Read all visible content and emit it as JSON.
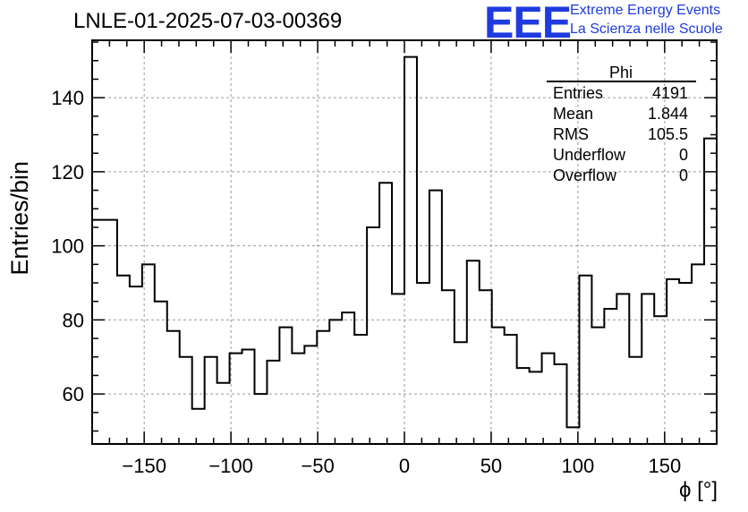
{
  "title": "LNLE-01-2025-07-03-00369",
  "logo": {
    "mark": "EEE",
    "line1": "Extreme Energy Events",
    "line2": "La Scienza nelle Scuole",
    "color": "#1f3be0"
  },
  "stats_box": {
    "name": "Phi",
    "rows": [
      {
        "label": "Entries",
        "value": "4191"
      },
      {
        "label": "Mean",
        "value": "1.844"
      },
      {
        "label": "RMS",
        "value": "105.5"
      },
      {
        "label": "Underflow",
        "value": "0"
      },
      {
        "label": "Overflow",
        "value": "0"
      }
    ]
  },
  "chart_data": {
    "type": "histogram",
    "title": "LNLE-01-2025-07-03-00369",
    "xlabel": "ϕ [°]",
    "ylabel": "Entries/bin",
    "xlim": [
      -180,
      180
    ],
    "ylim": [
      46.5,
      155.5
    ],
    "grid": true,
    "xticks": [
      -150,
      -100,
      -50,
      0,
      50,
      100,
      150
    ],
    "xtick_labels": [
      "−150",
      "−100",
      "−50",
      "0",
      "50",
      "100",
      "150"
    ],
    "yticks": [
      60,
      80,
      100,
      120,
      140
    ],
    "bin_width": 7.2,
    "bin_edges_start": -180,
    "values": [
      107,
      107,
      92,
      89,
      95,
      85,
      77,
      70,
      56,
      70,
      63,
      71,
      72,
      60,
      69,
      78,
      71,
      73,
      77,
      80,
      82,
      76,
      105,
      117,
      87,
      151,
      90,
      115,
      88,
      74,
      96,
      88,
      78,
      76,
      67,
      66,
      71,
      68,
      51,
      92,
      78,
      83,
      87,
      70,
      87,
      81,
      91,
      90,
      95,
      129
    ]
  }
}
